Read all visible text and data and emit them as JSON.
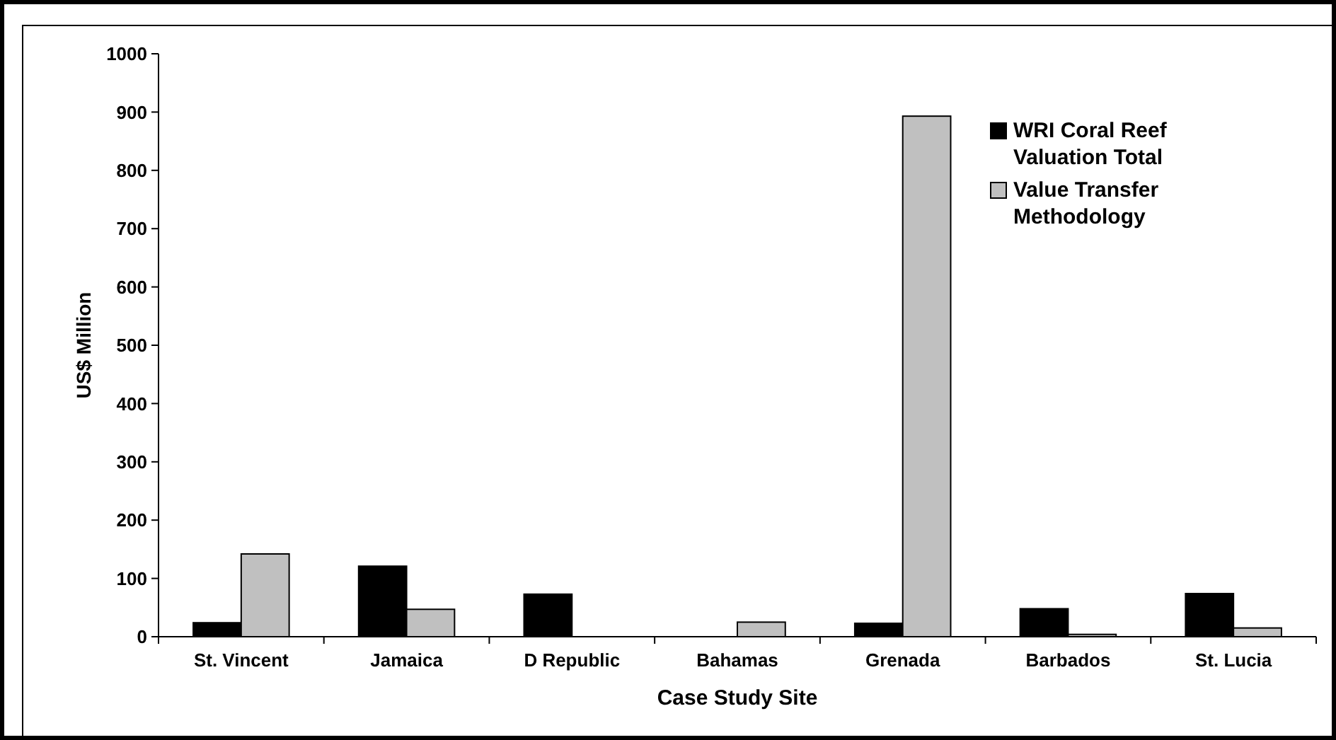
{
  "chart_data": {
    "type": "bar",
    "xlabel": "Case Study Site",
    "ylabel": "US$ Million",
    "categories": [
      "St. Vincent",
      "Jamaica",
      "D Republic",
      "Bahamas",
      "Grenada",
      "Barbados",
      "St. Lucia"
    ],
    "series": [
      {
        "name": "WRI Coral Reef Valuation Total",
        "color": "#000000",
        "values": [
          24,
          121,
          73,
          0,
          23,
          48,
          74
        ]
      },
      {
        "name": "Value Transfer Methodology",
        "color": "#c0c0c0",
        "values": [
          142,
          47,
          0,
          25,
          893,
          4,
          15
        ]
      }
    ],
    "ylim": [
      0,
      1000
    ],
    "yticks": [
      0,
      100,
      200,
      300,
      400,
      500,
      600,
      700,
      800,
      900,
      1000
    ],
    "grid": false,
    "legend": "top right"
  }
}
